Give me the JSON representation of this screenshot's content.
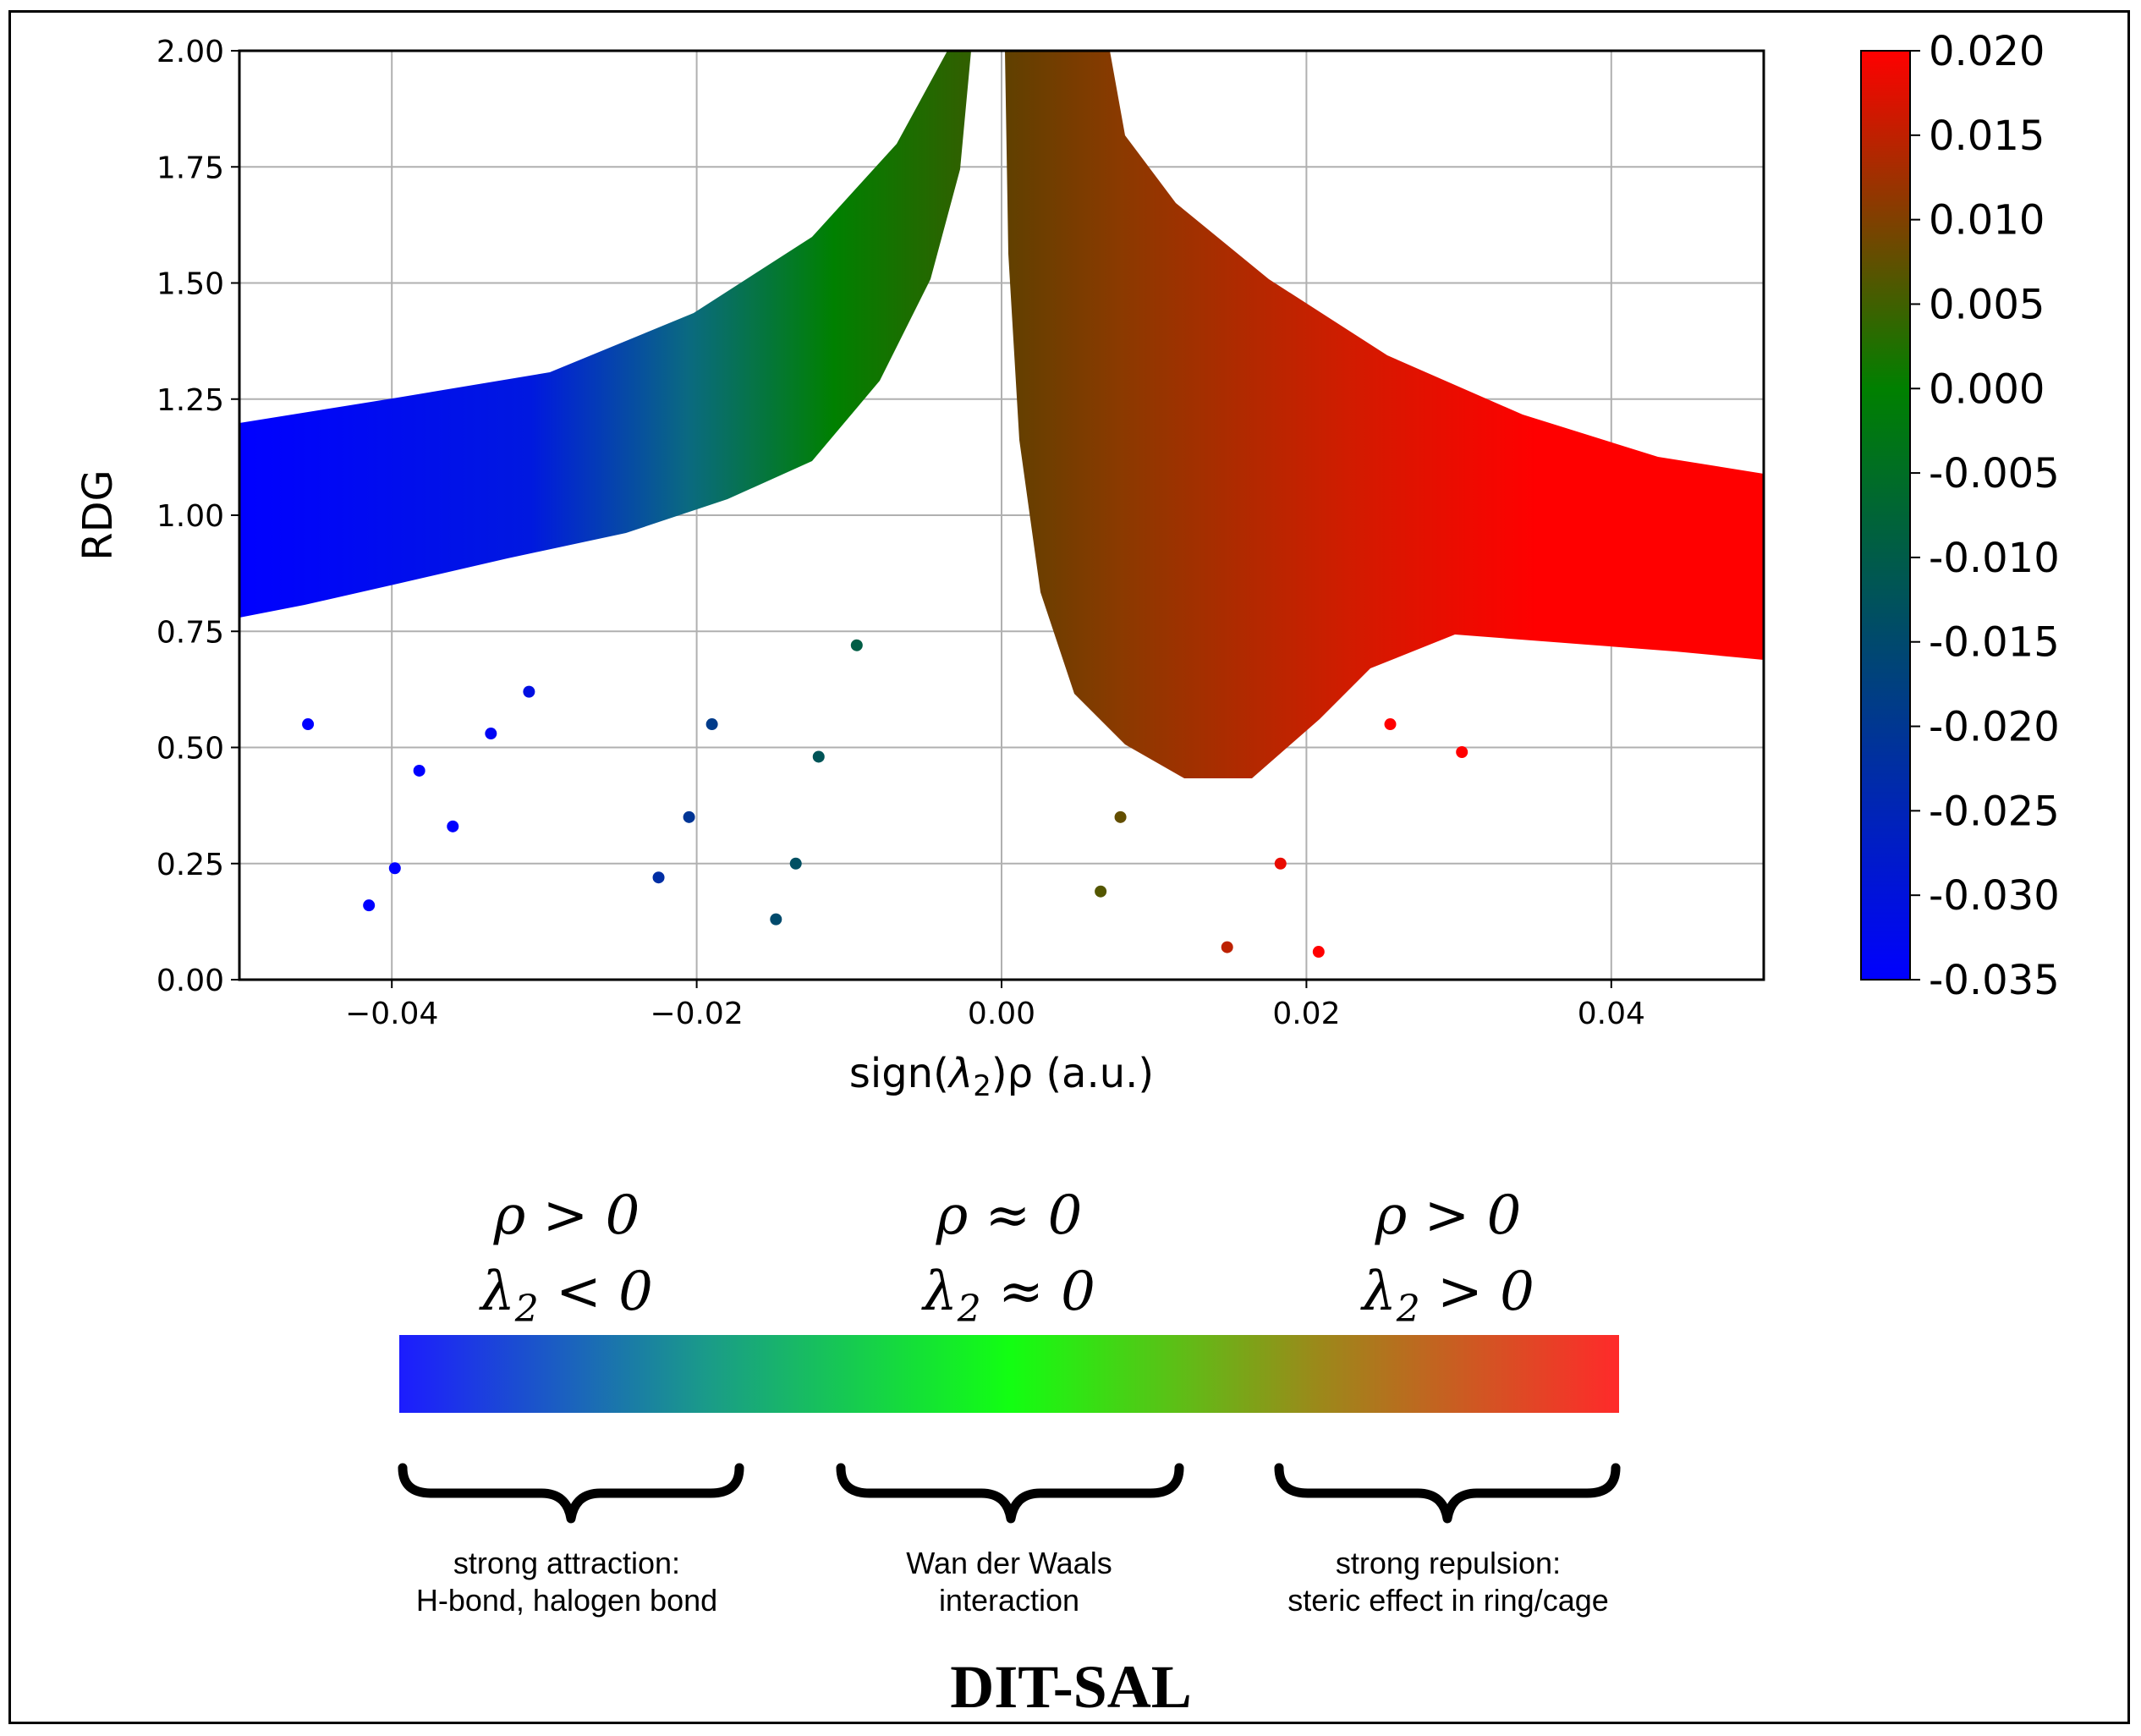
{
  "chart_data": {
    "type": "scatter",
    "title": "",
    "xlabel_prefix": "sign(",
    "xlabel_lambda": "λ",
    "xlabel_sub": "2",
    "xlabel_suffix": ")ρ (a.u.)",
    "ylabel": "RDG",
    "xlim": [
      -0.05,
      0.05
    ],
    "ylim": [
      0.0,
      2.0
    ],
    "xticks": [
      -0.04,
      -0.02,
      0.0,
      0.02,
      0.04
    ],
    "xtick_labels": [
      "−0.04",
      "−0.02",
      "0.00",
      "0.02",
      "0.04"
    ],
    "yticks": [
      0.0,
      0.25,
      0.5,
      0.75,
      1.0,
      1.25,
      1.5,
      1.75,
      2.0
    ],
    "ytick_labels": [
      "0.00",
      "0.25",
      "0.50",
      "0.75",
      "1.00",
      "1.25",
      "1.50",
      "1.75",
      "2.00"
    ],
    "grid": true,
    "colorscale": {
      "min": -0.035,
      "zero": 0.0,
      "max": 0.02,
      "colors": [
        "#0000ff",
        "#008000",
        "#ff0000"
      ]
    },
    "colorbar_ticks": [
      "0.020",
      "0.015",
      "0.010",
      "0.005",
      "0.000",
      "-0.005",
      "-0.010",
      "-0.015",
      "-0.020",
      "-0.025",
      "-0.030",
      "-0.035"
    ],
    "colorbar_values": [
      0.02,
      0.015,
      0.01,
      0.005,
      0.0,
      -0.005,
      -0.01,
      -0.015,
      -0.02,
      -0.025,
      -0.03,
      -0.035
    ],
    "sample_points": [
      {
        "x": -0.0415,
        "y": 0.16
      },
      {
        "x": -0.0398,
        "y": 0.24
      },
      {
        "x": -0.0382,
        "y": 0.45
      },
      {
        "x": -0.036,
        "y": 0.33
      },
      {
        "x": -0.0335,
        "y": 0.53
      },
      {
        "x": -0.031,
        "y": 0.62
      },
      {
        "x": -0.0455,
        "y": 0.55
      },
      {
        "x": -0.0225,
        "y": 0.22
      },
      {
        "x": -0.0205,
        "y": 0.35
      },
      {
        "x": -0.019,
        "y": 0.55
      },
      {
        "x": -0.0148,
        "y": 0.13
      },
      {
        "x": -0.0135,
        "y": 0.25
      },
      {
        "x": -0.012,
        "y": 0.48
      },
      {
        "x": -0.0095,
        "y": 0.72
      },
      {
        "x": 0.0065,
        "y": 0.19
      },
      {
        "x": 0.0078,
        "y": 0.35
      },
      {
        "x": 0.0148,
        "y": 0.07
      },
      {
        "x": 0.0208,
        "y": 0.06
      },
      {
        "x": 0.0183,
        "y": 0.25
      },
      {
        "x": 0.0302,
        "y": 0.49
      },
      {
        "x": 0.0255,
        "y": 0.55
      },
      {
        "x": 0.0405,
        "y": 0.78
      },
      {
        "x": 0.048,
        "y": 1.0
      }
    ]
  },
  "regions": [
    {
      "rho": "ρ > 0",
      "lambda": "λ",
      "lambda_sub": "2",
      "lambda_rel": " < 0",
      "desc_line1": "strong attraction:",
      "desc_line2": "H-bond, halogen bond"
    },
    {
      "rho": "ρ ≈ 0",
      "lambda": "λ",
      "lambda_sub": "2",
      "lambda_rel": " ≈ 0",
      "desc_line1": "Wan der Waals",
      "desc_line2": "interaction"
    },
    {
      "rho": "ρ > 0",
      "lambda": "λ",
      "lambda_sub": "2",
      "lambda_rel": " > 0",
      "desc_line1": "strong repulsion:",
      "desc_line2": "steric effect in ring/cage"
    }
  ],
  "legend_bar_colors": [
    "#1c1cff",
    "#1a9a8a",
    "#12ff12",
    "#9a8a1a",
    "#ff2a2a"
  ],
  "figure_title": "DIT-SAL"
}
